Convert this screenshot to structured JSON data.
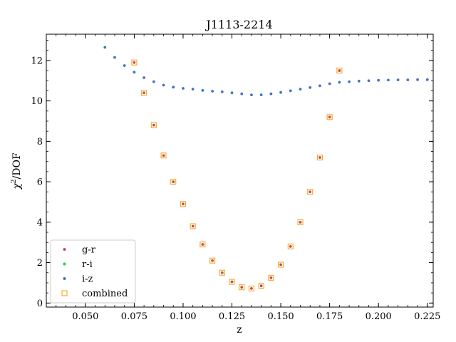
{
  "chart_data": {
    "type": "scatter",
    "title": "J1113-2214",
    "xlabel": "z",
    "ylabel_main": "χ",
    "ylabel_sup": "2",
    "ylabel_tail": "/DOF",
    "xlim": [
      0.03,
      0.228
    ],
    "ylim": [
      -0.2,
      13.3
    ],
    "xticks": [
      0.05,
      0.075,
      0.1,
      0.125,
      0.15,
      0.175,
      0.2,
      0.225
    ],
    "xtick_labels": [
      "0.050",
      "0.075",
      "0.100",
      "0.125",
      "0.150",
      "0.175",
      "0.200",
      "0.225"
    ],
    "yticks": [
      0,
      2,
      4,
      6,
      8,
      10,
      12
    ],
    "ytick_labels": [
      "0",
      "2",
      "4",
      "6",
      "8",
      "10",
      "12"
    ],
    "legend_placement": "lower-left",
    "grid": false,
    "series": [
      {
        "name": "g-r",
        "marker": "dot",
        "color": "#c44e52",
        "x": [
          0.075,
          0.08,
          0.085,
          0.09,
          0.095,
          0.1,
          0.105,
          0.11,
          0.115,
          0.12,
          0.125,
          0.13,
          0.135,
          0.14,
          0.145,
          0.15,
          0.155,
          0.16,
          0.165,
          0.17,
          0.175,
          0.18
        ],
        "y": [
          11.9,
          10.4,
          8.8,
          7.3,
          6.0,
          4.9,
          3.8,
          2.9,
          2.1,
          1.5,
          1.05,
          0.78,
          0.72,
          0.85,
          1.25,
          1.9,
          2.8,
          4.0,
          5.5,
          7.2,
          9.2,
          11.5
        ]
      },
      {
        "name": "r-i",
        "marker": "dot",
        "color": "#2ecc40",
        "x": [],
        "y": []
      },
      {
        "name": "i-z",
        "marker": "dot",
        "color": "#4472c4",
        "x": [
          0.06,
          0.065,
          0.07,
          0.075,
          0.08,
          0.085,
          0.09,
          0.095,
          0.1,
          0.105,
          0.11,
          0.115,
          0.12,
          0.125,
          0.13,
          0.135,
          0.14,
          0.145,
          0.15,
          0.155,
          0.16,
          0.165,
          0.17,
          0.175,
          0.18,
          0.185,
          0.19,
          0.195,
          0.2,
          0.205,
          0.21,
          0.215,
          0.22,
          0.225
        ],
        "y": [
          12.65,
          12.15,
          11.75,
          11.42,
          11.15,
          10.95,
          10.78,
          10.68,
          10.62,
          10.58,
          10.52,
          10.48,
          10.45,
          10.4,
          10.35,
          10.3,
          10.3,
          10.35,
          10.42,
          10.5,
          10.58,
          10.66,
          10.75,
          10.85,
          10.92,
          10.95,
          10.98,
          11.0,
          11.02,
          11.03,
          11.04,
          11.04,
          11.05,
          11.05
        ]
      },
      {
        "name": "combined",
        "marker": "square",
        "color": "#f5a623",
        "x": [
          0.075,
          0.08,
          0.085,
          0.09,
          0.095,
          0.1,
          0.105,
          0.11,
          0.115,
          0.12,
          0.125,
          0.13,
          0.135,
          0.14,
          0.145,
          0.15,
          0.155,
          0.16,
          0.165,
          0.17,
          0.175,
          0.18
        ],
        "y": [
          11.9,
          10.4,
          8.8,
          7.3,
          6.0,
          4.9,
          3.8,
          2.9,
          2.1,
          1.5,
          1.05,
          0.78,
          0.72,
          0.85,
          1.25,
          1.9,
          2.8,
          4.0,
          5.5,
          7.2,
          9.2,
          11.5
        ]
      }
    ]
  }
}
